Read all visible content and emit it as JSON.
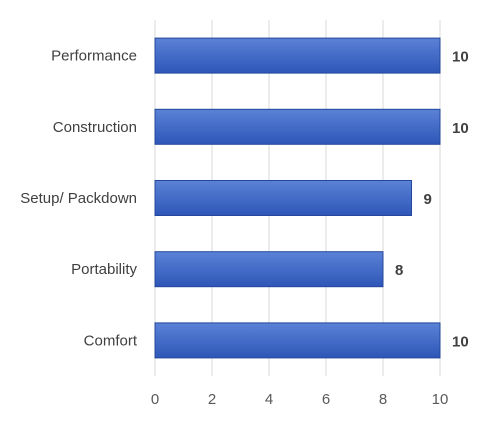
{
  "chart_data": {
    "type": "bar",
    "orientation": "horizontal",
    "categories": [
      "Performance",
      "Construction",
      "Setup/ Packdown",
      "Portability",
      "Comfort"
    ],
    "values": [
      10,
      10,
      9,
      8,
      10
    ],
    "data_labels": [
      "10",
      "10",
      "9",
      "8",
      "10"
    ],
    "xlim": [
      0,
      10
    ],
    "x_ticks": [
      0,
      2,
      4,
      6,
      8,
      10
    ],
    "title": "",
    "xlabel": "",
    "ylabel": "",
    "grid": true,
    "legend": "none",
    "colors": {
      "bar_top": "#5b82d6",
      "bar_bottom": "#2d56b8",
      "bar_stroke": "#24479b",
      "grid": "#d9d9d9"
    }
  }
}
